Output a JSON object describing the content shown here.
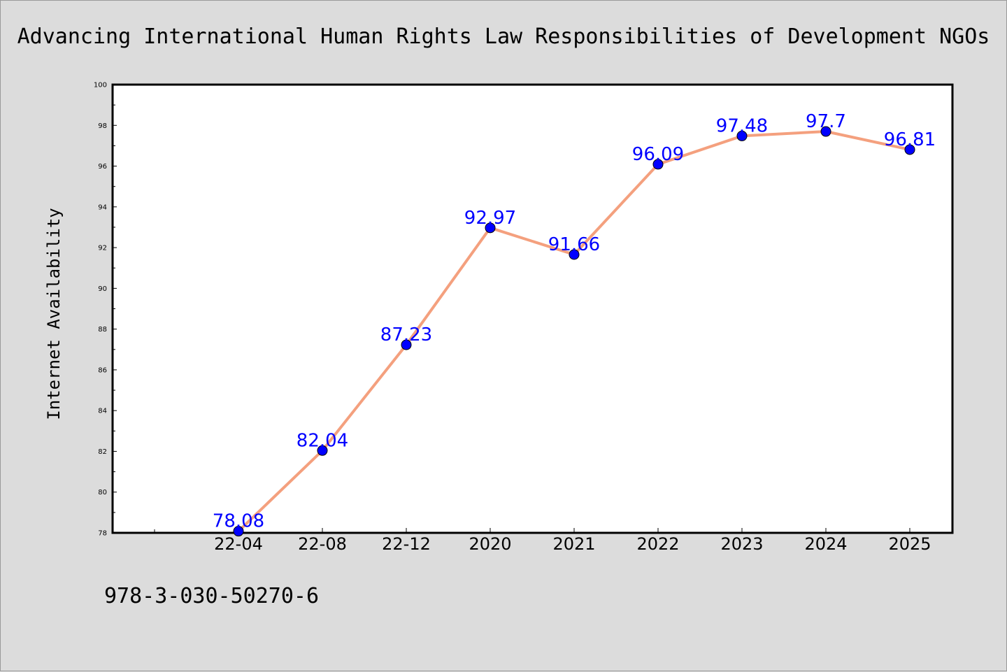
{
  "chart_data": {
    "type": "line",
    "title": "Advancing International Human Rights Law Responsibilities of Development NGOs",
    "xlabel": "",
    "ylabel": "Internet Availability",
    "categories": [
      "22-04",
      "22-08",
      "22-12",
      "2020",
      "2021",
      "2022",
      "2023",
      "2024",
      "2025"
    ],
    "series": [
      {
        "values": [
          78.08,
          82.04,
          87.23,
          92.97,
          91.66,
          96.09,
          97.48,
          97.7,
          96.81
        ],
        "line_color": "#f4a07e",
        "marker_color": "#0000ff"
      }
    ],
    "ylim": [
      78,
      100
    ],
    "yticks": [
      78,
      80,
      82,
      84,
      86,
      88,
      90,
      92,
      94,
      96,
      98,
      100
    ],
    "data_labels": [
      "78.08",
      "82.04",
      "87.23",
      "92.97",
      "91.66",
      "96.09",
      "97.48",
      "97.7",
      "96.81"
    ],
    "grid": false,
    "legend": "none"
  },
  "footnote": "978-3-030-50270-6"
}
